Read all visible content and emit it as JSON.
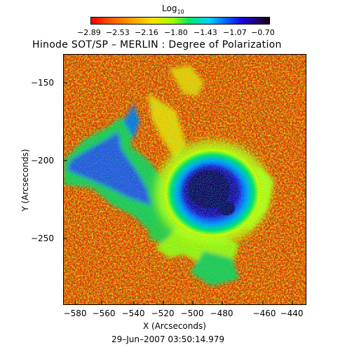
{
  "colorbar": {
    "label_main": "Log",
    "label_sub": "10",
    "ticks": [
      "−2.89",
      "−2.53",
      "−2.16",
      "−1.80",
      "−1.43",
      "−1.07",
      "−0.70"
    ]
  },
  "title": "Hinode SOT/SP – MERLIN : Degree of Polarization",
  "x_axis": {
    "label": "X (Arcseconds)",
    "ticks": [
      "−580",
      "−560",
      "−540",
      "−520",
      "−500",
      "−480",
      "−460",
      "−440"
    ]
  },
  "y_axis": {
    "label": "Y (Arcseconds)",
    "ticks": [
      "−150",
      "−200",
      "−250"
    ]
  },
  "timestamp": "29–Jun–2007 03:50:14.979",
  "colors": {
    "background_low": "#ff0000",
    "mid_yellow": "#ffe000",
    "mid_green": "#00e860",
    "high_blue": "#0060ff",
    "high_violet": "#1800e0",
    "max_dark": "#100010"
  }
}
